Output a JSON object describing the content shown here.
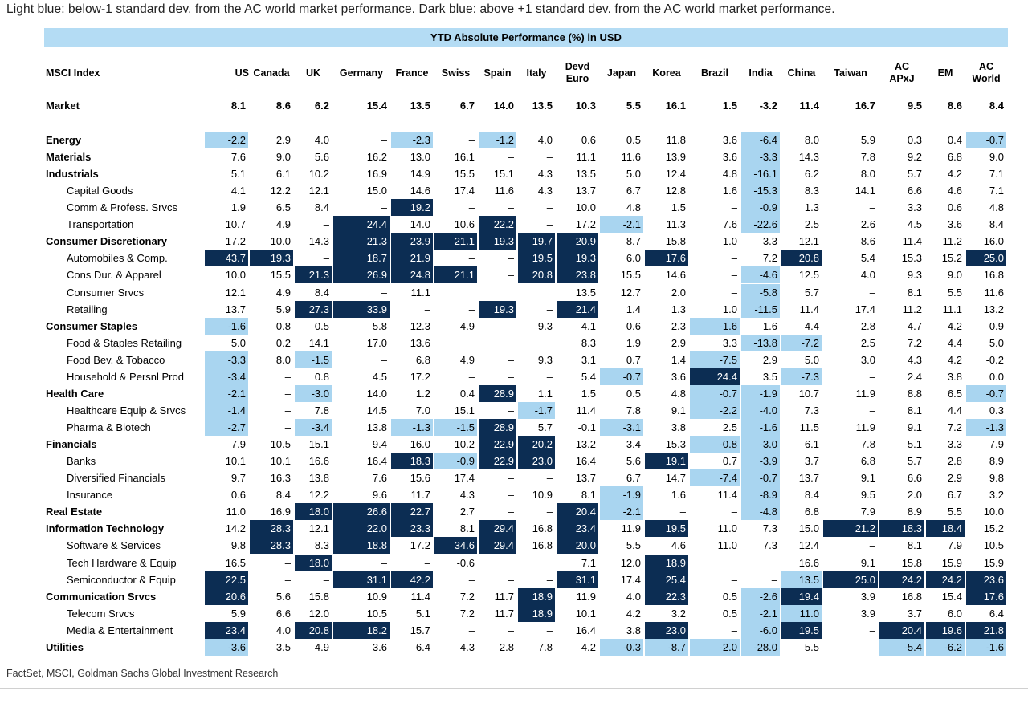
{
  "note": "Light blue: below-1 standard dev. from the AC world market performance. Dark blue: above +1 standard dev. from the AC world market performance.",
  "source": "FactSet, MSCI, Goldman Sachs Global Investment Research",
  "chart_data": {
    "type": "table",
    "title": "YTD Absolute Performance (%) in USD",
    "index_header": "MSCI Index",
    "columns": [
      "US",
      "Canada",
      "UK",
      "Germany",
      "France",
      "Swiss",
      "Spain",
      "Italy",
      "Devd Euro",
      "Japan",
      "Korea",
      "Brazil",
      "India",
      "China",
      "Taiwan",
      "AC APxJ",
      "EM",
      "AC World"
    ],
    "highlight_legend": {
      "light": "#a9d5f0",
      "dark": "#0c2d53"
    },
    "rows": [
      {
        "name": "Market",
        "bold": true,
        "values": [
          "8.1",
          "8.6",
          "6.2",
          "15.4",
          "13.5",
          "6.7",
          "14.0",
          "13.5",
          "10.3",
          "5.5",
          "16.1",
          "1.5",
          "-3.2",
          "11.4",
          "16.7",
          "9.5",
          "8.6",
          "8.4"
        ],
        "hl": "..................."
      },
      {
        "name": "Energy",
        "bold": true,
        "values": [
          "-2.2",
          "2.9",
          "4.0",
          "–",
          "-2.3",
          "–",
          "-1.2",
          "4.0",
          "0.6",
          "0.5",
          "11.8",
          "3.6",
          "-6.4",
          "8.0",
          "5.9",
          "0.3",
          "0.4",
          "-0.7"
        ],
        "hl": "L...L.L.....L....L"
      },
      {
        "name": "Materials",
        "bold": true,
        "values": [
          "7.6",
          "9.0",
          "5.6",
          "16.2",
          "13.0",
          "16.1",
          "–",
          "–",
          "11.1",
          "11.6",
          "13.9",
          "3.6",
          "-3.3",
          "14.3",
          "7.8",
          "9.2",
          "6.8",
          "9.0"
        ],
        "hl": "............L....."
      },
      {
        "name": "Industrials",
        "bold": true,
        "values": [
          "5.1",
          "6.1",
          "10.2",
          "16.9",
          "14.9",
          "15.5",
          "15.1",
          "4.3",
          "13.5",
          "5.0",
          "12.4",
          "4.8",
          "-16.1",
          "6.2",
          "8.0",
          "5.7",
          "4.2",
          "7.1"
        ],
        "hl": "............L....."
      },
      {
        "name": "Capital Goods",
        "bold": false,
        "values": [
          "4.1",
          "12.2",
          "12.1",
          "15.0",
          "14.6",
          "17.4",
          "11.6",
          "4.3",
          "13.7",
          "6.7",
          "12.8",
          "1.6",
          "-15.3",
          "8.3",
          "14.1",
          "6.6",
          "4.6",
          "7.1"
        ],
        "hl": "............L....."
      },
      {
        "name": "Comm & Profess. Srvcs",
        "bold": false,
        "values": [
          "1.9",
          "6.5",
          "8.4",
          "–",
          "19.2",
          "–",
          "–",
          "–",
          "10.0",
          "4.8",
          "1.5",
          "–",
          "-0.9",
          "1.3",
          "–",
          "3.3",
          "0.6",
          "4.8"
        ],
        "hl": "....D.......L....."
      },
      {
        "name": "Transportation",
        "bold": false,
        "values": [
          "10.7",
          "4.9",
          "–",
          "24.4",
          "14.0",
          "10.6",
          "22.2",
          "–",
          "17.2",
          "-2.1",
          "11.3",
          "7.6",
          "-22.6",
          "2.5",
          "2.6",
          "4.5",
          "3.6",
          "8.4"
        ],
        "hl": "...D..D..L..L....."
      },
      {
        "name": "Consumer Discretionary",
        "bold": true,
        "values": [
          "17.2",
          "10.0",
          "14.3",
          "21.3",
          "23.9",
          "21.1",
          "19.3",
          "19.7",
          "20.9",
          "8.7",
          "15.8",
          "1.0",
          "3.3",
          "12.1",
          "8.6",
          "11.4",
          "11.2",
          "16.0"
        ],
        "hl": "...DDDDDD........."
      },
      {
        "name": "Automobiles & Comp.",
        "bold": false,
        "values": [
          "43.7",
          "19.3",
          "–",
          "18.7",
          "21.9",
          "–",
          "–",
          "19.5",
          "19.3",
          "6.0",
          "17.6",
          "–",
          "7.2",
          "20.8",
          "5.4",
          "15.3",
          "15.2",
          "25.0"
        ],
        "hl": "DD.DD..DD.D..D...D"
      },
      {
        "name": "Cons Dur. & Apparel",
        "bold": false,
        "values": [
          "10.0",
          "15.5",
          "21.3",
          "26.9",
          "24.8",
          "21.1",
          "–",
          "20.8",
          "23.8",
          "15.5",
          "14.6",
          "–",
          "-4.6",
          "12.5",
          "4.0",
          "9.3",
          "9.0",
          "16.8"
        ],
        "hl": "..DDDD.DD...L....."
      },
      {
        "name": "Consumer Srvcs",
        "bold": false,
        "values": [
          "12.1",
          "4.9",
          "8.4",
          "–",
          "11.1",
          "",
          "",
          "",
          "13.5",
          "12.7",
          "2.0",
          "–",
          "-5.8",
          "5.7",
          "–",
          "8.1",
          "5.5",
          "11.6"
        ],
        "hl": "............L....."
      },
      {
        "name": "Retailing",
        "bold": false,
        "values": [
          "13.7",
          "5.9",
          "27.3",
          "33.9",
          "–",
          "–",
          "19.3",
          "–",
          "21.4",
          "1.4",
          "1.3",
          "1.0",
          "-11.5",
          "11.4",
          "17.4",
          "11.2",
          "11.1",
          "13.2"
        ],
        "hl": "..DD..D.D...L....."
      },
      {
        "name": "Consumer Staples",
        "bold": true,
        "values": [
          "-1.6",
          "0.8",
          "0.5",
          "5.8",
          "12.3",
          "4.9",
          "–",
          "9.3",
          "4.1",
          "0.6",
          "2.3",
          "-1.6",
          "1.6",
          "4.4",
          "2.8",
          "4.7",
          "4.2",
          "0.9"
        ],
        "hl": "L..........L......"
      },
      {
        "name": "Food & Staples Retailing",
        "bold": false,
        "values": [
          "5.0",
          "0.2",
          "14.1",
          "17.0",
          "13.6",
          "",
          "",
          "",
          "8.3",
          "1.9",
          "2.9",
          "3.3",
          "-13.8",
          "-7.2",
          "2.5",
          "7.2",
          "4.4",
          "5.0"
        ],
        "hl": "............LL...."
      },
      {
        "name": "Food Bev. & Tobacco",
        "bold": false,
        "values": [
          "-3.3",
          "8.0",
          "-1.5",
          "–",
          "6.8",
          "4.9",
          "–",
          "9.3",
          "3.1",
          "0.7",
          "1.4",
          "-7.5",
          "2.9",
          "5.0",
          "3.0",
          "4.3",
          "4.2",
          "-0.2"
        ],
        "hl": "L.L........L......"
      },
      {
        "name": "Household & Persnl Prod",
        "bold": false,
        "values": [
          "-3.4",
          "–",
          "0.8",
          "4.5",
          "17.2",
          "–",
          "–",
          "–",
          "5.4",
          "-0.7",
          "3.6",
          "24.4",
          "3.5",
          "-7.3",
          "–",
          "2.4",
          "3.8",
          "0.0"
        ],
        "hl": "L........L.D.L...."
      },
      {
        "name": "Health Care",
        "bold": true,
        "values": [
          "-2.1",
          "–",
          "-3.0",
          "14.0",
          "1.2",
          "0.4",
          "28.9",
          "1.1",
          "1.5",
          "0.5",
          "4.8",
          "-0.7",
          "-1.9",
          "10.7",
          "11.9",
          "8.8",
          "6.5",
          "-0.7"
        ],
        "hl": "L.L...D....LL....L"
      },
      {
        "name": "Healthcare Equip & Srvcs",
        "bold": false,
        "values": [
          "-1.4",
          "–",
          "7.8",
          "14.5",
          "7.0",
          "15.1",
          "–",
          "-1.7",
          "11.4",
          "7.8",
          "9.1",
          "-2.2",
          "-4.0",
          "7.3",
          "–",
          "8.1",
          "4.4",
          "0.3"
        ],
        "hl": "L......L...LL....."
      },
      {
        "name": "Pharma & Biotech",
        "bold": false,
        "values": [
          "-2.7",
          "–",
          "-3.4",
          "13.8",
          "-1.3",
          "-1.5",
          "28.9",
          "5.7",
          "-0.1",
          "-3.1",
          "3.8",
          "2.5",
          "-1.6",
          "11.5",
          "11.9",
          "9.1",
          "7.2",
          "-1.3"
        ],
        "hl": "L.L.LLD..L..L....L"
      },
      {
        "name": "Financials",
        "bold": true,
        "values": [
          "7.9",
          "10.5",
          "15.1",
          "9.4",
          "16.0",
          "10.2",
          "22.9",
          "20.2",
          "13.2",
          "3.4",
          "15.3",
          "-0.8",
          "-3.0",
          "6.1",
          "7.8",
          "5.1",
          "3.3",
          "7.9"
        ],
        "hl": "......DD...LL....."
      },
      {
        "name": "Banks",
        "bold": false,
        "values": [
          "10.1",
          "10.1",
          "16.6",
          "16.4",
          "18.3",
          "-0.9",
          "22.9",
          "23.0",
          "16.4",
          "5.6",
          "19.1",
          "0.7",
          "-3.9",
          "3.7",
          "6.8",
          "5.7",
          "2.8",
          "8.9"
        ],
        "hl": "....DLDD..D.L....."
      },
      {
        "name": "Diversified Financials",
        "bold": false,
        "values": [
          "9.7",
          "16.3",
          "13.8",
          "7.6",
          "15.6",
          "17.4",
          "–",
          "–",
          "13.7",
          "6.7",
          "14.7",
          "-7.4",
          "-0.7",
          "13.7",
          "9.1",
          "6.6",
          "2.9",
          "9.8"
        ],
        "hl": "...........LL....."
      },
      {
        "name": "Insurance",
        "bold": false,
        "values": [
          "0.6",
          "8.4",
          "12.2",
          "9.6",
          "11.7",
          "4.3",
          "–",
          "10.9",
          "8.1",
          "-1.9",
          "1.6",
          "11.4",
          "-8.9",
          "8.4",
          "9.5",
          "2.0",
          "6.7",
          "3.2"
        ],
        "hl": ".........L..L....."
      },
      {
        "name": "Real Estate",
        "bold": true,
        "values": [
          "11.0",
          "16.9",
          "18.0",
          "26.6",
          "22.7",
          "2.7",
          "–",
          "–",
          "20.4",
          "-2.1",
          "–",
          "–",
          "-4.8",
          "6.8",
          "7.9",
          "8.9",
          "5.5",
          "10.0"
        ],
        "hl": "..DDD...DL..L....."
      },
      {
        "name": "Information Technology",
        "bold": true,
        "values": [
          "14.2",
          "28.3",
          "12.1",
          "22.0",
          "23.3",
          "8.1",
          "29.4",
          "16.8",
          "23.4",
          "11.9",
          "19.5",
          "11.0",
          "7.3",
          "15.0",
          "21.2",
          "18.3",
          "18.4",
          "15.2"
        ],
        "hl": ".D.DD.D.D.D...DDD."
      },
      {
        "name": "Software & Services",
        "bold": false,
        "values": [
          "9.8",
          "28.3",
          "8.3",
          "18.8",
          "17.2",
          "34.6",
          "29.4",
          "16.8",
          "20.0",
          "5.5",
          "4.6",
          "11.0",
          "7.3",
          "12.4",
          "–",
          "8.1",
          "7.9",
          "10.5"
        ],
        "hl": ".D.D.DD.D........."
      },
      {
        "name": "Tech Hardware & Equip",
        "bold": false,
        "values": [
          "16.5",
          "–",
          "18.0",
          "–",
          "–",
          "-0.6",
          "",
          "",
          "7.1",
          "12.0",
          "18.9",
          "",
          "",
          "16.6",
          "9.1",
          "15.8",
          "15.9",
          "15.9"
        ],
        "hl": "..D.......D......."
      },
      {
        "name": "Semiconductor & Equip",
        "bold": false,
        "values": [
          "22.5",
          "–",
          "–",
          "31.1",
          "42.2",
          "–",
          "–",
          "–",
          "31.1",
          "17.4",
          "25.4",
          "–",
          "–",
          "13.5",
          "25.0",
          "24.2",
          "24.2",
          "23.6"
        ],
        "hl": "D..DD...D.D..LDDDD"
      },
      {
        "name": "Communication Srvcs",
        "bold": true,
        "values": [
          "20.6",
          "5.6",
          "15.8",
          "10.9",
          "11.4",
          "7.2",
          "11.7",
          "18.9",
          "11.9",
          "4.0",
          "22.3",
          "0.5",
          "-2.6",
          "19.4",
          "3.9",
          "16.8",
          "15.4",
          "17.6"
        ],
        "hl": "D......D..D.LD...D"
      },
      {
        "name": "Telecom Srvcs",
        "bold": false,
        "values": [
          "5.9",
          "6.6",
          "12.0",
          "10.5",
          "5.1",
          "7.2",
          "11.7",
          "18.9",
          "10.1",
          "4.2",
          "3.2",
          "0.5",
          "-2.1",
          "11.0",
          "3.9",
          "3.7",
          "6.0",
          "6.4"
        ],
        "hl": ".......D....LL...."
      },
      {
        "name": "Media & Entertainment",
        "bold": false,
        "values": [
          "23.4",
          "4.0",
          "20.8",
          "18.2",
          "15.7",
          "–",
          "–",
          "–",
          "16.4",
          "3.8",
          "23.0",
          "–",
          "-6.0",
          "19.5",
          "–",
          "20.4",
          "19.6",
          "21.8"
        ],
        "hl": "D.DD......D.LD.DDD"
      },
      {
        "name": "Utilities",
        "bold": true,
        "values": [
          "-3.6",
          "3.5",
          "4.9",
          "3.6",
          "6.4",
          "4.3",
          "2.8",
          "7.8",
          "4.2",
          "-0.3",
          "-8.7",
          "-2.0",
          "-28.0",
          "5.5",
          "–",
          "-5.4",
          "-6.2",
          "-1.6"
        ],
        "hl": "L........LLLL..LLL"
      }
    ]
  }
}
